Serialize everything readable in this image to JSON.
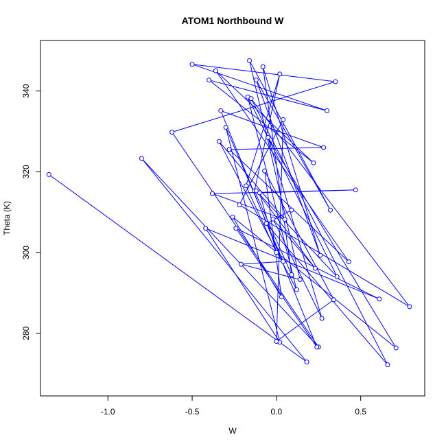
{
  "chart_data": {
    "type": "line",
    "title": "ATOM1 Northbound W",
    "xlabel": "W",
    "ylabel": "Theta (K)",
    "xlim": [
      -1.4,
      0.88
    ],
    "ylim": [
      264.5,
      352.5
    ],
    "xticks": [
      -1.0,
      -0.5,
      0.0,
      0.5
    ],
    "xtick_labels": [
      "-1.0",
      "-0.5",
      "0.0",
      "0.5"
    ],
    "yticks": [
      280,
      300,
      320,
      340
    ],
    "ytick_labels": [
      "280",
      "300",
      "320",
      "340"
    ],
    "grid": false,
    "legend": "none",
    "color": "#0000ff",
    "series": [
      {
        "marker": "open-circle",
        "x": [
          -1.35,
          0.18,
          -0.8,
          0.25,
          -0.62,
          0.35,
          -0.5,
          0.3,
          -0.4,
          0.22,
          -0.36,
          0.43,
          -0.28,
          0.28,
          -0.33,
          0.24,
          -0.24,
          0.61,
          -0.42,
          0.02,
          -0.3,
          0.04,
          -0.21,
          0.14,
          -0.16,
          0.32,
          -0.12,
          0.26,
          -0.08,
          0.09,
          -0.13,
          0.02,
          -0.18,
          0.0,
          -0.1,
          0.47,
          -0.38,
          0.05,
          -0.34,
          0.12,
          -0.17,
          0.36,
          -0.12,
          0.23,
          -0.02,
          0.27,
          -0.05,
          0.71,
          -0.26,
          0.03,
          -0.07,
          0.34,
          0.0,
          0.04,
          -0.22,
          0.79,
          -0.15,
          0.66,
          -0.06,
          0.09
        ],
        "y": [
          319.3,
          272.9,
          323.3,
          276.6,
          329.8,
          342.3,
          346.6,
          335.1,
          342.7,
          322.2,
          345.0,
          297.7,
          325.5,
          326.0,
          335.1,
          276.6,
          306.0,
          288.5,
          306.0,
          277.8,
          331.0,
          297.8,
          297.1,
          293.3,
          347.5,
          310.5,
          342.7,
          299.3,
          346.0,
          294.5,
          315.3,
          344.2,
          316.5,
          300.0,
          314.8,
          315.5,
          314.6,
          308.2,
          327.5,
          290.8,
          338.5,
          294.0,
          315.3,
          296.1,
          308.3,
          283.7,
          328.5,
          276.4,
          308.8,
          289.0,
          320.2,
          288.3,
          278.0,
          332.9,
          311.8,
          286.6,
          338.1,
          272.2,
          307.2,
          310.5
        ]
      }
    ]
  }
}
